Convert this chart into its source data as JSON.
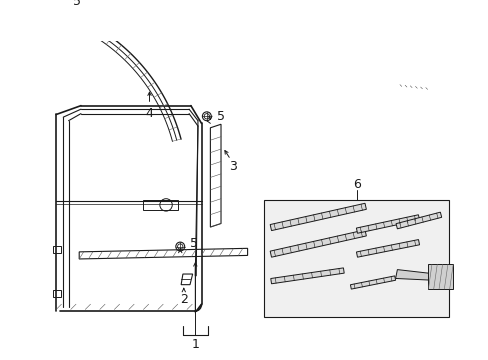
{
  "bg_color": "#ffffff",
  "line_color": "#1a1a1a",
  "fig_width": 4.89,
  "fig_height": 3.6,
  "dpi": 100,
  "label_fs": 8
}
